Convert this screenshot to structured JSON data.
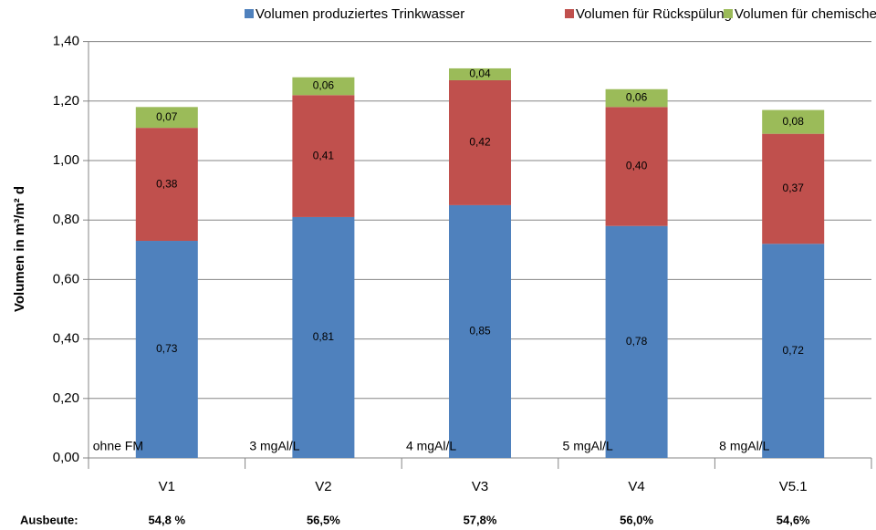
{
  "chart_data": {
    "type": "stacked_bar",
    "y_label": "Volumen in m³/m² d",
    "categories": [
      "V1",
      "V2",
      "V3",
      "V4",
      "V5.1"
    ],
    "series": [
      {
        "name": "Volumen produziertes Trinkwasser",
        "color": "#4f81bd",
        "values": [
          0.73,
          0.81,
          0.85,
          0.78,
          0.72
        ],
        "value_labels": [
          "0,73",
          "0,81",
          "0,85",
          "0,78",
          "0,72"
        ]
      },
      {
        "name": "Volumen für Rückspülung",
        "color": "#c0504d",
        "values": [
          0.38,
          0.41,
          0.42,
          0.4,
          0.37
        ],
        "value_labels": [
          "0,38",
          "0,41",
          "0,42",
          "0,40",
          "0,37"
        ]
      },
      {
        "name": "Volumen für chemische Reinigung",
        "color": "#9bbb59",
        "values": [
          0.07,
          0.06,
          0.04,
          0.06,
          0.08
        ],
        "value_labels": [
          "0,07",
          "0,06",
          "0,04",
          "0,06",
          "0,08"
        ]
      }
    ],
    "bar_notes": [
      "ohne FM",
      "3 mgAl/L",
      "4 mgAl/L",
      "5 mgAl/L",
      "8 mgAl/L"
    ],
    "yield_label": "Ausbeute:",
    "yields": [
      "54,8 %",
      "56,5%",
      "57,8%",
      "56,0%",
      "54,6%"
    ],
    "ylim": [
      0,
      1.4
    ],
    "yticks": [
      {
        "value": 0,
        "label": "0,00"
      },
      {
        "value": 0.2,
        "label": "0,20"
      },
      {
        "value": 0.4,
        "label": "0,40"
      },
      {
        "value": 0.6,
        "label": "0,60"
      },
      {
        "value": 0.8,
        "label": "0,80"
      },
      {
        "value": 1.0,
        "label": "1,00"
      },
      {
        "value": 1.2,
        "label": "1,20"
      },
      {
        "value": 1.4,
        "label": "1,40"
      }
    ],
    "grid": true,
    "legend": "top"
  }
}
